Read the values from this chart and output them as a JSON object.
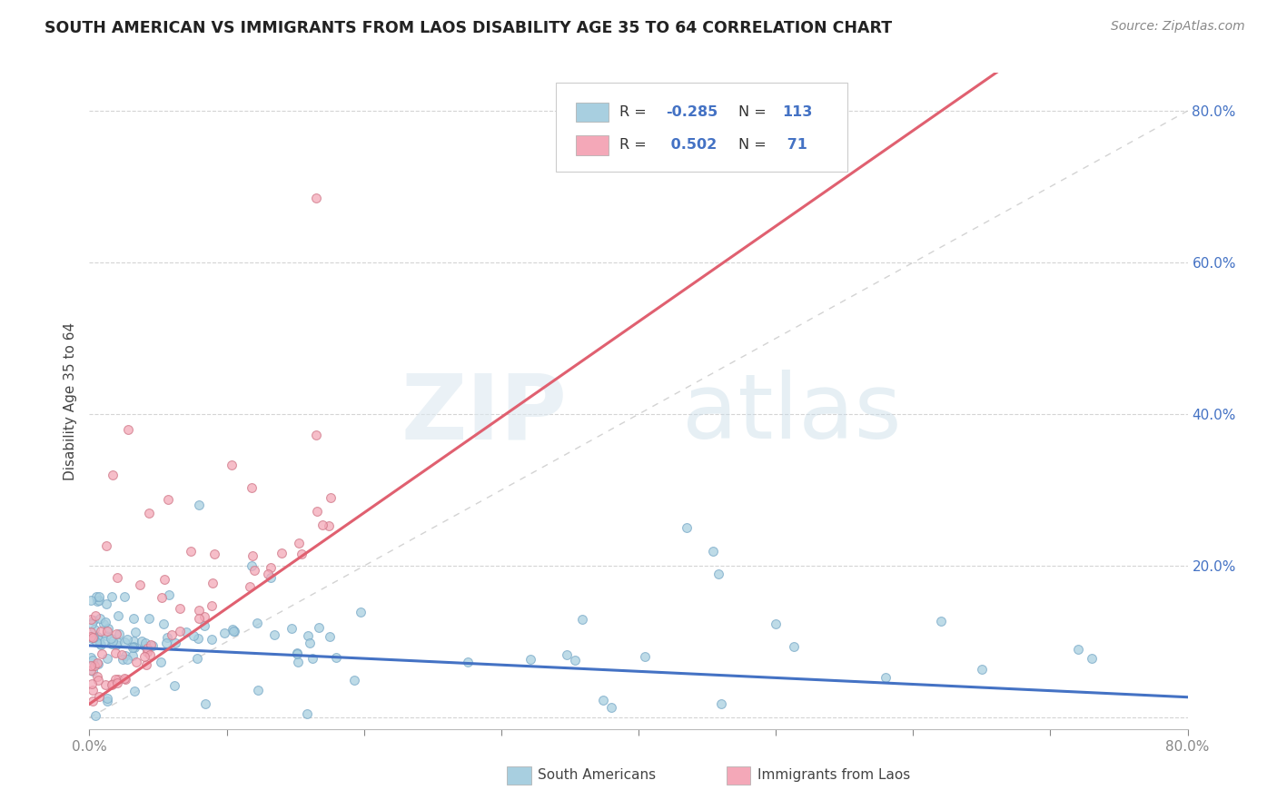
{
  "title": "SOUTH AMERICAN VS IMMIGRANTS FROM LAOS DISABILITY AGE 35 TO 64 CORRELATION CHART",
  "source": "Source: ZipAtlas.com",
  "ylabel": "Disability Age 35 to 64",
  "xlim": [
    0.0,
    0.8
  ],
  "ylim": [
    -0.015,
    0.85
  ],
  "blue_color": "#a8cfe0",
  "pink_color": "#f4a8b8",
  "blue_line_color": "#4472c4",
  "pink_line_color": "#e06070",
  "diag_line_color": "#c8c8c8",
  "legend_label_blue": "South Americans",
  "legend_label_pink": "Immigrants from Laos",
  "watermark_zip": "ZIP",
  "watermark_atlas": "atlas",
  "background_color": "#ffffff",
  "blue_trend": [
    0.095,
    -0.085
  ],
  "pink_trend": [
    0.018,
    1.26
  ],
  "seed_blue": 42,
  "seed_pink": 99,
  "n_blue": 113,
  "n_pink": 71
}
